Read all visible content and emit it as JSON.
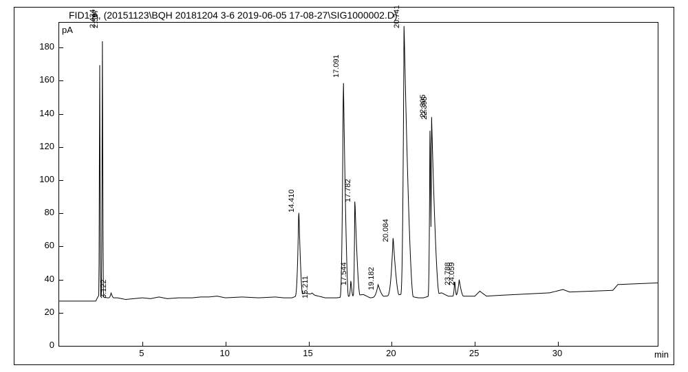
{
  "chromatogram": {
    "type": "line",
    "title": "FID1 A,  (20151123\\BQH 20181204 3-6 2019-06-05 17-08-27\\SIG1000002.D)",
    "x_label": "min",
    "y_label": "pA",
    "xlim": [
      0,
      36
    ],
    "ylim": [
      0,
      195
    ],
    "x_ticks": [
      5,
      10,
      15,
      20,
      25,
      30
    ],
    "y_ticks": [
      0,
      20,
      40,
      60,
      80,
      100,
      120,
      140,
      160,
      180
    ],
    "line_color": "#000000",
    "line_width": 1,
    "background_color": "#ffffff",
    "title_fontsize": 14,
    "label_fontsize": 13,
    "tick_fontsize": 13,
    "peak_label_fontsize": 11,
    "baseline": 27,
    "peaks": [
      {
        "rt": 2.434,
        "height": 195,
        "width": 0.06,
        "label": "2.434"
      },
      {
        "rt": 2.597,
        "height": 195,
        "width": 0.07,
        "label": "2.597"
      },
      {
        "rt": 3.122,
        "height": 32,
        "width": 0.15,
        "label": "3.122"
      },
      {
        "rt": 14.41,
        "height": 84,
        "width": 0.22,
        "label": "14.410"
      },
      {
        "rt": 15.211,
        "height": 32,
        "width": 0.18,
        "label": "15.211"
      },
      {
        "rt": 17.091,
        "height": 165,
        "wleft": 0.2,
        "wright": 0.3,
        "label": "17.091"
      },
      {
        "rt": 17.544,
        "height": 40,
        "width": 0.12,
        "label": "17.544"
      },
      {
        "rt": 17.782,
        "height": 90,
        "wleft": 0.1,
        "wright": 0.3,
        "label": "17.782"
      },
      {
        "rt": 19.182,
        "height": 37,
        "width": 0.35,
        "label": "19.182"
      },
      {
        "rt": 20.084,
        "height": 66,
        "wleft": 0.35,
        "wright": 0.35,
        "label": "20.084"
      },
      {
        "rt": 20.741,
        "height": 195,
        "wleft": 0.2,
        "wright": 0.55,
        "label": "20.741"
      },
      {
        "rt": 22.305,
        "height": 141,
        "width": 0.12,
        "label": "22.305"
      },
      {
        "rt": 22.395,
        "height": 140,
        "wleft": 0.08,
        "wright": 0.45,
        "label": "22.395"
      },
      {
        "rt": 23.788,
        "height": 40,
        "width": 0.12,
        "label": "23.788"
      },
      {
        "rt": 24.059,
        "height": 40,
        "width": 0.25,
        "label": "24.059"
      }
    ],
    "baseline_points": [
      {
        "x": 0.0,
        "y": 27
      },
      {
        "x": 2.2,
        "y": 27
      },
      {
        "x": 2.35,
        "y": 30
      },
      {
        "x": 2.9,
        "y": 29
      },
      {
        "x": 3.5,
        "y": 29
      },
      {
        "x": 4.0,
        "y": 28
      },
      {
        "x": 5.0,
        "y": 29
      },
      {
        "x": 5.5,
        "y": 28.5
      },
      {
        "x": 6.0,
        "y": 29.5
      },
      {
        "x": 6.5,
        "y": 28.5
      },
      {
        "x": 7.2,
        "y": 29
      },
      {
        "x": 8.0,
        "y": 29
      },
      {
        "x": 8.5,
        "y": 29.5
      },
      {
        "x": 9.0,
        "y": 29.5
      },
      {
        "x": 9.5,
        "y": 30
      },
      {
        "x": 10.0,
        "y": 29
      },
      {
        "x": 11.0,
        "y": 29.5
      },
      {
        "x": 12.0,
        "y": 29
      },
      {
        "x": 13.0,
        "y": 29.5
      },
      {
        "x": 13.5,
        "y": 29
      },
      {
        "x": 14.0,
        "y": 29
      },
      {
        "x": 14.8,
        "y": 32
      },
      {
        "x": 16.0,
        "y": 29
      },
      {
        "x": 16.7,
        "y": 29
      },
      {
        "x": 18.3,
        "y": 31
      },
      {
        "x": 18.7,
        "y": 29
      },
      {
        "x": 20.55,
        "y": 31
      },
      {
        "x": 21.6,
        "y": 29
      },
      {
        "x": 21.9,
        "y": 29
      },
      {
        "x": 23.0,
        "y": 32
      },
      {
        "x": 23.4,
        "y": 30
      },
      {
        "x": 24.5,
        "y": 30
      },
      {
        "x": 25.0,
        "y": 30
      },
      {
        "x": 25.3,
        "y": 33
      },
      {
        "x": 25.7,
        "y": 30
      },
      {
        "x": 26.5,
        "y": 30.5
      },
      {
        "x": 27.5,
        "y": 31
      },
      {
        "x": 28.5,
        "y": 31.5
      },
      {
        "x": 29.5,
        "y": 32
      },
      {
        "x": 30.3,
        "y": 34
      },
      {
        "x": 30.7,
        "y": 32.5
      },
      {
        "x": 32.0,
        "y": 33
      },
      {
        "x": 33.3,
        "y": 33.5
      },
      {
        "x": 33.6,
        "y": 37
      },
      {
        "x": 36.0,
        "y": 38
      }
    ]
  }
}
